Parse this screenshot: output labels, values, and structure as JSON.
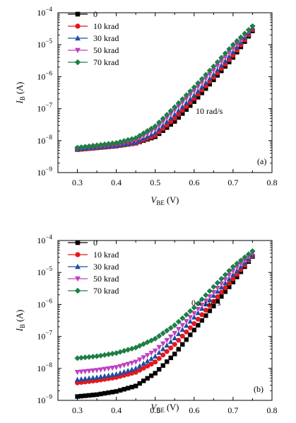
{
  "chart_data": [
    {
      "type": "scatter",
      "panel_label": "(a)",
      "annotation": "10 rad/s",
      "xlabel": {
        "main": "V",
        "sub": "BE",
        "unit": " (V)"
      },
      "ylabel": {
        "main": "I",
        "sub": "B",
        "unit": " (A)"
      },
      "xlim": [
        0.25,
        0.8
      ],
      "ylim_log10": [
        -9,
        -4
      ],
      "y_scale": "log",
      "x_ticks": [
        "0.3",
        "0.4",
        "0.5",
        "0.6",
        "0.7",
        "0.8"
      ],
      "y_ticks": [
        {
          "base": "10",
          "exp": "−4"
        },
        {
          "base": "10",
          "exp": "−5"
        },
        {
          "base": "10",
          "exp": "−6"
        },
        {
          "base": "10",
          "exp": "−7"
        },
        {
          "base": "10",
          "exp": "−8"
        },
        {
          "base": "10",
          "exp": "−9"
        }
      ],
      "legend_position": "top-left",
      "series": [
        {
          "name": "0",
          "color": "#000000",
          "marker": "square",
          "anchors": [
            [
              0.3,
              -8.28
            ],
            [
              0.4,
              -8.17
            ],
            [
              0.45,
              -8.08
            ],
            [
              0.5,
              -7.88
            ],
            [
              0.55,
              -7.4
            ],
            [
              0.6,
              -6.78
            ],
            [
              0.65,
              -6.1
            ],
            [
              0.7,
              -5.4
            ],
            [
              0.75,
              -4.57
            ]
          ]
        },
        {
          "name": "10 krad",
          "color": "#e8161c",
          "marker": "circle",
          "anchors": [
            [
              0.3,
              -8.28
            ],
            [
              0.4,
              -8.17
            ],
            [
              0.45,
              -8.08
            ],
            [
              0.5,
              -7.84
            ],
            [
              0.55,
              -7.3
            ],
            [
              0.6,
              -6.68
            ],
            [
              0.65,
              -6.02
            ],
            [
              0.7,
              -5.33
            ],
            [
              0.75,
              -4.53
            ]
          ]
        },
        {
          "name": "30 krad",
          "color": "#1f4e9e",
          "marker": "triangle-up",
          "anchors": [
            [
              0.3,
              -8.26
            ],
            [
              0.4,
              -8.15
            ],
            [
              0.45,
              -8.05
            ],
            [
              0.5,
              -7.75
            ],
            [
              0.55,
              -7.18
            ],
            [
              0.6,
              -6.58
            ],
            [
              0.65,
              -5.93
            ],
            [
              0.7,
              -5.23
            ],
            [
              0.75,
              -4.47
            ]
          ]
        },
        {
          "name": "50 krad",
          "color": "#bf3fbf",
          "marker": "triangle-down",
          "anchors": [
            [
              0.3,
              -8.25
            ],
            [
              0.4,
              -8.12
            ],
            [
              0.45,
              -8.0
            ],
            [
              0.5,
              -7.65
            ],
            [
              0.55,
              -7.05
            ],
            [
              0.6,
              -6.45
            ],
            [
              0.65,
              -5.8
            ],
            [
              0.7,
              -5.12
            ],
            [
              0.75,
              -4.45
            ]
          ]
        },
        {
          "name": "70 krad",
          "color": "#1e7f45",
          "marker": "diamond",
          "anchors": [
            [
              0.3,
              -8.22
            ],
            [
              0.4,
              -8.07
            ],
            [
              0.45,
              -7.92
            ],
            [
              0.5,
              -7.55
            ],
            [
              0.55,
              -6.95
            ],
            [
              0.6,
              -6.33
            ],
            [
              0.65,
              -5.68
            ],
            [
              0.7,
              -5.0
            ],
            [
              0.75,
              -4.42
            ]
          ]
        }
      ]
    },
    {
      "type": "scatter",
      "panel_label": "(b)",
      "annotation": "0.1 rad/s",
      "xlabel": {
        "main": "V",
        "sub": "BE",
        "unit": " (V)"
      },
      "ylabel": {
        "main": "I",
        "sub": "B",
        "unit": " (A)"
      },
      "xlim": [
        0.25,
        0.8
      ],
      "ylim_log10": [
        -9,
        -4
      ],
      "y_scale": "log",
      "x_ticks": [
        "0.3",
        "0.4",
        "0.5",
        "0.6",
        "0.7",
        "0.8"
      ],
      "y_ticks": [
        {
          "base": "10",
          "exp": "−4"
        },
        {
          "base": "10",
          "exp": "−5"
        },
        {
          "base": "10",
          "exp": "−6"
        },
        {
          "base": "10",
          "exp": "−7"
        },
        {
          "base": "10",
          "exp": "−8"
        },
        {
          "base": "10",
          "exp": "−9"
        }
      ],
      "legend_position": "top-left",
      "series": [
        {
          "name": "0",
          "color": "#000000",
          "marker": "square",
          "anchors": [
            [
              0.3,
              -8.88
            ],
            [
              0.35,
              -8.82
            ],
            [
              0.4,
              -8.72
            ],
            [
              0.45,
              -8.55
            ],
            [
              0.5,
              -8.15
            ],
            [
              0.55,
              -7.55
            ],
            [
              0.6,
              -6.8
            ],
            [
              0.65,
              -6.05
            ],
            [
              0.7,
              -5.3
            ],
            [
              0.75,
              -4.5
            ]
          ]
        },
        {
          "name": "10 krad",
          "color": "#e8161c",
          "marker": "circle",
          "anchors": [
            [
              0.3,
              -8.45
            ],
            [
              0.35,
              -8.38
            ],
            [
              0.4,
              -8.28
            ],
            [
              0.45,
              -8.12
            ],
            [
              0.5,
              -7.8
            ],
            [
              0.55,
              -7.25
            ],
            [
              0.6,
              -6.6
            ],
            [
              0.65,
              -5.9
            ],
            [
              0.7,
              -5.2
            ],
            [
              0.75,
              -4.48
            ]
          ]
        },
        {
          "name": "30 krad",
          "color": "#1f4e9e",
          "marker": "triangle-up",
          "anchors": [
            [
              0.3,
              -8.35
            ],
            [
              0.35,
              -8.28
            ],
            [
              0.4,
              -8.18
            ],
            [
              0.45,
              -8.0
            ],
            [
              0.5,
              -7.62
            ],
            [
              0.55,
              -7.05
            ],
            [
              0.6,
              -6.4
            ],
            [
              0.65,
              -5.72
            ],
            [
              0.7,
              -5.07
            ],
            [
              0.75,
              -4.45
            ]
          ]
        },
        {
          "name": "50 krad",
          "color": "#bf3fbf",
          "marker": "triangle-down",
          "anchors": [
            [
              0.3,
              -8.12
            ],
            [
              0.35,
              -8.06
            ],
            [
              0.4,
              -7.97
            ],
            [
              0.45,
              -7.8
            ],
            [
              0.5,
              -7.45
            ],
            [
              0.55,
              -6.9
            ],
            [
              0.6,
              -6.28
            ],
            [
              0.65,
              -5.62
            ],
            [
              0.7,
              -4.95
            ],
            [
              0.75,
              -4.4
            ]
          ]
        },
        {
          "name": "70 krad",
          "color": "#1e7f45",
          "marker": "diamond",
          "anchors": [
            [
              0.3,
              -7.68
            ],
            [
              0.35,
              -7.62
            ],
            [
              0.4,
              -7.52
            ],
            [
              0.45,
              -7.35
            ],
            [
              0.5,
              -7.07
            ],
            [
              0.55,
              -6.65
            ],
            [
              0.6,
              -6.1
            ],
            [
              0.65,
              -5.45
            ],
            [
              0.7,
              -4.82
            ],
            [
              0.75,
              -4.33
            ]
          ]
        }
      ]
    }
  ]
}
